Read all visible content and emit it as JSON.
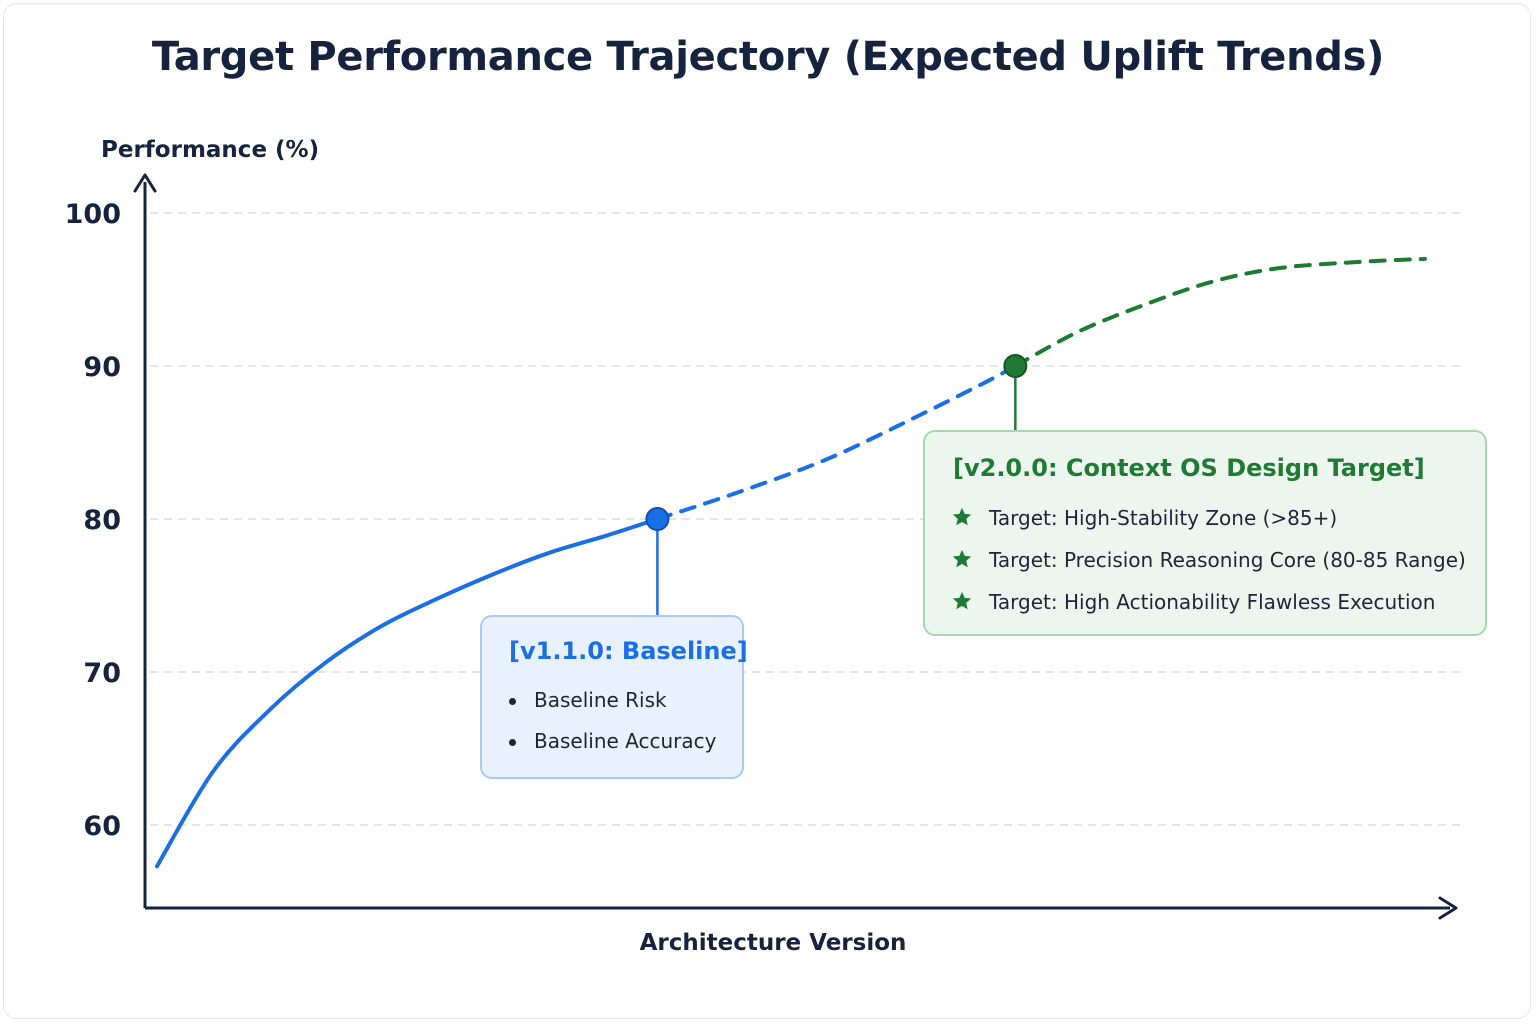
{
  "chart_data": {
    "type": "line",
    "title": "Target Performance Trajectory (Expected Uplift Trends)",
    "ylabel": "Performance (%)",
    "xlabel": "Architecture Version",
    "ylim": [
      55,
      100
    ],
    "yticks": [
      100,
      90,
      80,
      70,
      60
    ],
    "grid": "horizontal-dashed",
    "series": [
      {
        "segment": "measured",
        "style": "solid",
        "color": "#1a6ee6",
        "points": [
          [
            0,
            57.3
          ],
          [
            0.05,
            63.5
          ],
          [
            0.1,
            67.5
          ],
          [
            0.15,
            70.6
          ],
          [
            0.2,
            73.0
          ],
          [
            0.25,
            74.8
          ],
          [
            0.3,
            76.4
          ],
          [
            0.35,
            77.8
          ],
          [
            0.4,
            78.9
          ],
          [
            0.446,
            80.0
          ]
        ]
      },
      {
        "segment": "expected-uplift",
        "style": "dashed",
        "color": "#1a6ee6",
        "points": [
          [
            0.446,
            80.0
          ],
          [
            0.52,
            81.8
          ],
          [
            0.6,
            84.0
          ],
          [
            0.68,
            86.8
          ],
          [
            0.74,
            89.0
          ],
          [
            0.765,
            90.0
          ]
        ]
      },
      {
        "segment": "target",
        "style": "dashed",
        "color": "#1f7a34",
        "points": [
          [
            0.765,
            90.0
          ],
          [
            0.82,
            92.2
          ],
          [
            0.88,
            94.0
          ],
          [
            0.94,
            95.5
          ],
          [
            1.0,
            96.4
          ],
          [
            1.07,
            96.8
          ],
          [
            1.13,
            97.0
          ]
        ]
      }
    ],
    "markers": [
      {
        "x": 0.446,
        "y": 80,
        "color": "#1a6ee6",
        "label": "v1.1.0"
      },
      {
        "x": 0.765,
        "y": 90,
        "color": "#1f7a34",
        "label": "v2.0.0"
      }
    ],
    "annotations": {
      "baseline": {
        "title": "[v1.1.0: Baseline]",
        "items": [
          "Baseline Risk",
          "Baseline Accuracy"
        ],
        "color": "#1a6ee6",
        "bullet": "dot"
      },
      "target": {
        "title": "[v2.0.0: Context OS Design Target]",
        "items": [
          "Target: High-Stability Zone (>85+)",
          "Target: Precision Reasoning Core (80-85 Range)",
          "Target: High Actionability Flawless Execution"
        ],
        "color": "#1f7a34",
        "bullet": "star-icon"
      }
    }
  }
}
